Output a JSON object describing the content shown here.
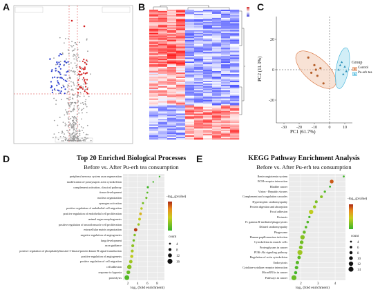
{
  "panels": {
    "A": "A",
    "B": "B",
    "C": "C",
    "D": "D",
    "E": "E"
  },
  "pca": {
    "xlabel": "PC1 (61.7%)",
    "ylabel": "PC2 (11.3%)",
    "xticks": [
      "-30",
      "-20",
      "-10",
      "0",
      "10"
    ],
    "yticks": [
      "20",
      "0",
      "-20"
    ],
    "legend_title": "Group",
    "legend_items": [
      {
        "label": "Control",
        "color": "#d9713a"
      },
      {
        "label": "Pu-erh tea",
        "color": "#3ab0d8"
      }
    ]
  },
  "go": {
    "title": "Top 20 Enriched Biological Processes",
    "subtitle": "Before vs. After Pu-erh tea consumption",
    "xlabel": "log₂ (fold enrichment)",
    "xticks": [
      "2",
      "4",
      "6",
      "8"
    ],
    "legend_color_title": "-log₁₀(pvalue)",
    "legend_size_title": "count",
    "size_ticks": [
      "4",
      "8",
      "12",
      "16"
    ]
  },
  "kegg": {
    "title": "KEGG Pathway Enrichment Analysis",
    "subtitle": "Before vs. After Pu-erh tea consumption",
    "xlabel": "log₂ (fold enrichment)",
    "xticks": [
      "2",
      "3",
      "4"
    ],
    "legend_color_title": "-log₁₀(pvalue)",
    "legend_size_title": "count",
    "size_ticks": [
      "4",
      "6",
      "8",
      "10",
      "12",
      "14"
    ]
  },
  "chart_data": [
    {
      "type": "scatter",
      "name": "pca",
      "xlabel": "PC1 (61.7%)",
      "ylabel": "PC2 (11.3%)",
      "xlim": [
        -35,
        15
      ],
      "ylim": [
        -35,
        35
      ],
      "series": [
        {
          "name": "Control",
          "points": [
            [
              -14,
              8
            ],
            [
              -10,
              3
            ],
            [
              -6,
              1
            ],
            [
              -12,
              -2
            ],
            [
              -8,
              -4
            ],
            [
              -4,
              -9
            ],
            [
              -9,
              0
            ]
          ]
        },
        {
          "name": "Pu-erh tea",
          "points": [
            [
              7,
              3
            ],
            [
              10,
              2
            ],
            [
              6,
              0
            ],
            [
              9,
              -3
            ],
            [
              8,
              5
            ],
            [
              11,
              -1
            ]
          ]
        }
      ]
    },
    {
      "type": "scatter",
      "name": "go_bubble",
      "title": "Top 20 Enriched Biological Processes",
      "xlabel": "log₂ (fold enrichment)",
      "xlim": [
        1,
        9.5
      ],
      "terms": [
        {
          "label": "peripheral nervous system axon regeneration",
          "x": 8.5,
          "count": 3,
          "p": 3.0
        },
        {
          "label": "modification of postsynaptic actin cytoskeleton",
          "x": 7.2,
          "count": 3,
          "p": 3.2
        },
        {
          "label": "complement activation, classical pathway",
          "x": 6.1,
          "count": 5,
          "p": 3.1
        },
        {
          "label": "tissue development",
          "x": 6.0,
          "count": 4,
          "p": 3.4
        },
        {
          "label": "nucleus organization",
          "x": 5.8,
          "count": 5,
          "p": 3.6
        },
        {
          "label": "zymogen activation",
          "x": 5.1,
          "count": 5,
          "p": 3.8
        },
        {
          "label": "positive regulation of endothelial cell migration",
          "x": 4.8,
          "count": 6,
          "p": 4.6
        },
        {
          "label": "positive regulation of endothelial cell proliferation",
          "x": 4.6,
          "count": 7,
          "p": 5.3
        },
        {
          "label": "animal organ morphogenesis",
          "x": 4.4,
          "count": 7,
          "p": 4.8
        },
        {
          "label": "positive regulation of smooth muscle cell proliferation",
          "x": 4.2,
          "count": 6,
          "p": 4.2
        },
        {
          "label": "extracellular matrix organization",
          "x": 3.6,
          "count": 10,
          "p": 6.8
        },
        {
          "label": "negative regulation of angiogenesis",
          "x": 3.4,
          "count": 6,
          "p": 3.9
        },
        {
          "label": "lung development",
          "x": 3.2,
          "count": 6,
          "p": 3.7
        },
        {
          "label": "axon guidance",
          "x": 3.0,
          "count": 8,
          "p": 4.1
        },
        {
          "label": "positive regulation of phosphatidylinositol 3-kinase/protein kinase B signal transduction",
          "x": 2.9,
          "count": 8,
          "p": 4.4
        },
        {
          "label": "positive regulation of angiogenesis",
          "x": 2.8,
          "count": 9,
          "p": 4.7
        },
        {
          "label": "positive regulation of cell migration",
          "x": 2.6,
          "count": 10,
          "p": 4.3
        },
        {
          "label": "cell adhesion",
          "x": 2.3,
          "count": 14,
          "p": 4.0
        },
        {
          "label": "response to hypoxia",
          "x": 2.1,
          "count": 11,
          "p": 3.6
        },
        {
          "label": "proteolysis",
          "x": 1.8,
          "count": 15,
          "p": 3.3
        }
      ]
    },
    {
      "type": "scatter",
      "name": "kegg_bubble",
      "title": "KEGG Pathway Enrichment Analysis",
      "xlabel": "log₂ (fold enrichment)",
      "xlim": [
        1.3,
        4.6
      ],
      "terms": [
        {
          "label": "Renin-angiotensin system",
          "x": 4.5,
          "count": 4,
          "p": 3.1
        },
        {
          "label": "ECM-receptor interaction",
          "x": 3.8,
          "count": 10,
          "p": 6.5
        },
        {
          "label": "Bladder cancer",
          "x": 3.7,
          "count": 4,
          "p": 3.0
        },
        {
          "label": "Virion - Hepatitis viruses",
          "x": 3.4,
          "count": 5,
          "p": 3.3
        },
        {
          "label": "Complement and coagulation cascades",
          "x": 3.2,
          "count": 7,
          "p": 4.0
        },
        {
          "label": "Hypertrophic cardiomyopathy",
          "x": 2.9,
          "count": 7,
          "p": 3.8
        },
        {
          "label": "Protein digestion and absorption",
          "x": 2.8,
          "count": 8,
          "p": 4.2
        },
        {
          "label": "Focal adhesion",
          "x": 2.6,
          "count": 12,
          "p": 4.7
        },
        {
          "label": "Pertussis",
          "x": 2.5,
          "count": 5,
          "p": 3.2
        },
        {
          "label": "Fc gamma R-mediated phagocytosis",
          "x": 2.4,
          "count": 6,
          "p": 3.3
        },
        {
          "label": "Dilated cardiomyopathy",
          "x": 2.3,
          "count": 6,
          "p": 3.4
        },
        {
          "label": "Phagosome",
          "x": 2.2,
          "count": 8,
          "p": 3.6
        },
        {
          "label": "Human papillomavirus infection",
          "x": 2.1,
          "count": 12,
          "p": 4.0
        },
        {
          "label": "Cytoskeleton in muscle cells",
          "x": 2.05,
          "count": 10,
          "p": 3.7
        },
        {
          "label": "Proteoglycans in cancer",
          "x": 2.0,
          "count": 10,
          "p": 3.9
        },
        {
          "label": "PI3K-Akt signaling pathway",
          "x": 1.95,
          "count": 14,
          "p": 4.3
        },
        {
          "label": "Regulation of actin cytoskeleton",
          "x": 1.9,
          "count": 9,
          "p": 3.5
        },
        {
          "label": "Endocytosis",
          "x": 1.8,
          "count": 9,
          "p": 3.4
        },
        {
          "label": "Cytokine-cytokine receptor interaction",
          "x": 1.75,
          "count": 9,
          "p": 3.3
        },
        {
          "label": "MicroRNAs in cancer",
          "x": 1.7,
          "count": 8,
          "p": 3.1
        },
        {
          "label": "Pathways in cancer",
          "x": 1.6,
          "count": 14,
          "p": 3.6
        }
      ]
    }
  ]
}
